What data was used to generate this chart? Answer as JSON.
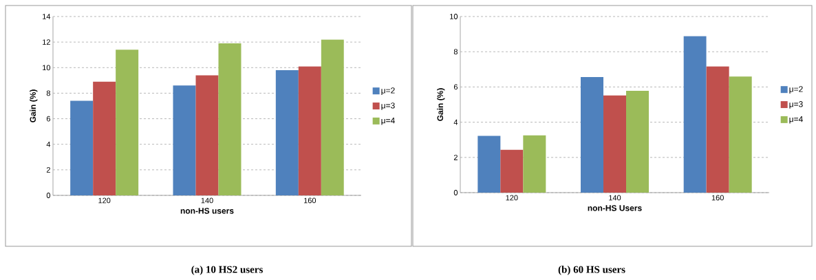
{
  "chart_data": [
    {
      "type": "bar",
      "xlabel": "non-HS users",
      "ylabel": "Gain (%)",
      "categories": [
        "120",
        "140",
        "160"
      ],
      "series": [
        {
          "name": "μ=2",
          "color": "#4f81bd",
          "values": [
            7.4,
            8.6,
            9.8
          ]
        },
        {
          "name": "μ=3",
          "color": "#c0504d",
          "values": [
            8.9,
            9.4,
            10.1
          ]
        },
        {
          "name": "μ=4",
          "color": "#9bbb59",
          "values": [
            11.4,
            11.9,
            12.2
          ]
        }
      ],
      "ylim": [
        0,
        14
      ],
      "yticks": [
        0,
        2,
        4,
        6,
        8,
        10,
        12,
        14
      ],
      "grid": "y",
      "legend": "right",
      "annotations": [
        "(a) 10 HS2 users"
      ]
    },
    {
      "type": "bar",
      "xlabel": "non-HS Users",
      "ylabel": "Gain (%)",
      "categories": [
        "120",
        "140",
        "160"
      ],
      "series": [
        {
          "name": "μ=2",
          "color": "#4f81bd",
          "values": [
            3.22,
            6.56,
            8.89
          ]
        },
        {
          "name": "μ=3",
          "color": "#c0504d",
          "values": [
            2.43,
            5.52,
            7.17
          ]
        },
        {
          "name": "μ=4",
          "color": "#9bbb59",
          "values": [
            3.25,
            5.78,
            6.59
          ]
        }
      ],
      "ylim": [
        0,
        10
      ],
      "yticks": [
        0,
        2,
        4,
        6,
        8,
        10
      ],
      "grid": "y",
      "legend": "right",
      "annotations": [
        "(b) 60 HS users"
      ]
    }
  ]
}
